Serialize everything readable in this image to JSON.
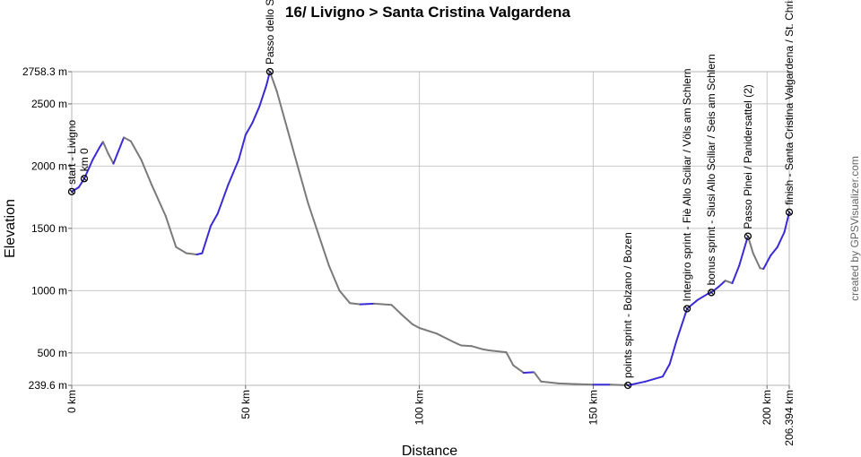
{
  "chart_data": {
    "type": "line",
    "title": "16/ Livigno > Santa Cristina Valgardena",
    "xlabel": "Distance",
    "ylabel": "Elevation",
    "credit": "created by GPSVisualizer.com",
    "xlim": [
      0,
      206.394
    ],
    "ylim": [
      239.6,
      2758.3
    ],
    "x_ticks": [
      "0 km",
      "50 km",
      "100 km",
      "150 km",
      "200 km",
      "206.394 km"
    ],
    "y_ticks": [
      "239.6 m",
      "500 m",
      "1000 m",
      "1500 m",
      "2000 m",
      "2500 m",
      "2758.3 m"
    ],
    "grid": true,
    "line_colors": [
      "#3a2bd6",
      "#7a7a7a"
    ],
    "waypoints": [
      {
        "label": "start - Livigno",
        "x": 0,
        "y": 1795
      },
      {
        "label": "km 0",
        "x": 3.6,
        "y": 1900
      },
      {
        "label": "Passo dello Stelvio",
        "x": 57.0,
        "y": 2758.3
      },
      {
        "label": "points sprint - Bolzano / Bozen",
        "x": 160.0,
        "y": 239.6
      },
      {
        "label": "Intergiro sprint - Fiè Allo Sciliar / Völs am Schlern",
        "x": 177.0,
        "y": 855
      },
      {
        "label": "bonus sprint - Siusi Allo Sciliar / Seis am Schlern",
        "x": 184.0,
        "y": 985
      },
      {
        "label": "Passo Pinei / Panidersattel (2)",
        "x": 194.5,
        "y": 1437
      },
      {
        "label": "finish - Santa Cristina Valgardena / St. Christina in Gröden",
        "x": 206.394,
        "y": 1630
      }
    ],
    "series": [
      {
        "x": [
          0,
          2,
          3.6,
          6,
          8,
          9,
          10.5,
          12,
          15,
          17,
          20,
          23,
          27,
          30,
          33,
          36,
          37.5,
          40,
          42,
          45,
          48,
          50,
          52,
          54,
          56,
          57,
          59,
          62,
          65,
          68,
          71,
          74,
          77,
          80,
          83,
          87,
          92,
          95,
          98,
          100,
          105,
          110,
          112,
          115,
          118,
          120,
          125,
          127,
          130,
          133,
          135,
          140,
          145,
          150,
          155,
          160,
          165,
          170,
          172,
          174,
          177,
          180,
          183,
          184,
          186,
          188,
          190,
          192,
          194.5,
          196,
          198,
          199,
          201,
          203,
          205,
          206.394
        ],
        "y": [
          1795,
          1830,
          1900,
          2050,
          2150,
          2195,
          2100,
          2020,
          2230,
          2200,
          2050,
          1850,
          1600,
          1350,
          1300,
          1290,
          1300,
          1520,
          1620,
          1850,
          2050,
          2250,
          2350,
          2480,
          2650,
          2758.3,
          2600,
          2300,
          2000,
          1700,
          1450,
          1200,
          1000,
          900,
          890,
          895,
          885,
          805,
          730,
          700,
          655,
          585,
          560,
          555,
          530,
          520,
          505,
          400,
          340,
          345,
          270,
          255,
          250,
          245,
          245,
          239.6,
          270,
          310,
          410,
          600,
          855,
          925,
          975,
          985,
          1030,
          1080,
          1060,
          1200,
          1437,
          1300,
          1180,
          1175,
          1280,
          1350,
          1470,
          1630
        ]
      }
    ]
  }
}
